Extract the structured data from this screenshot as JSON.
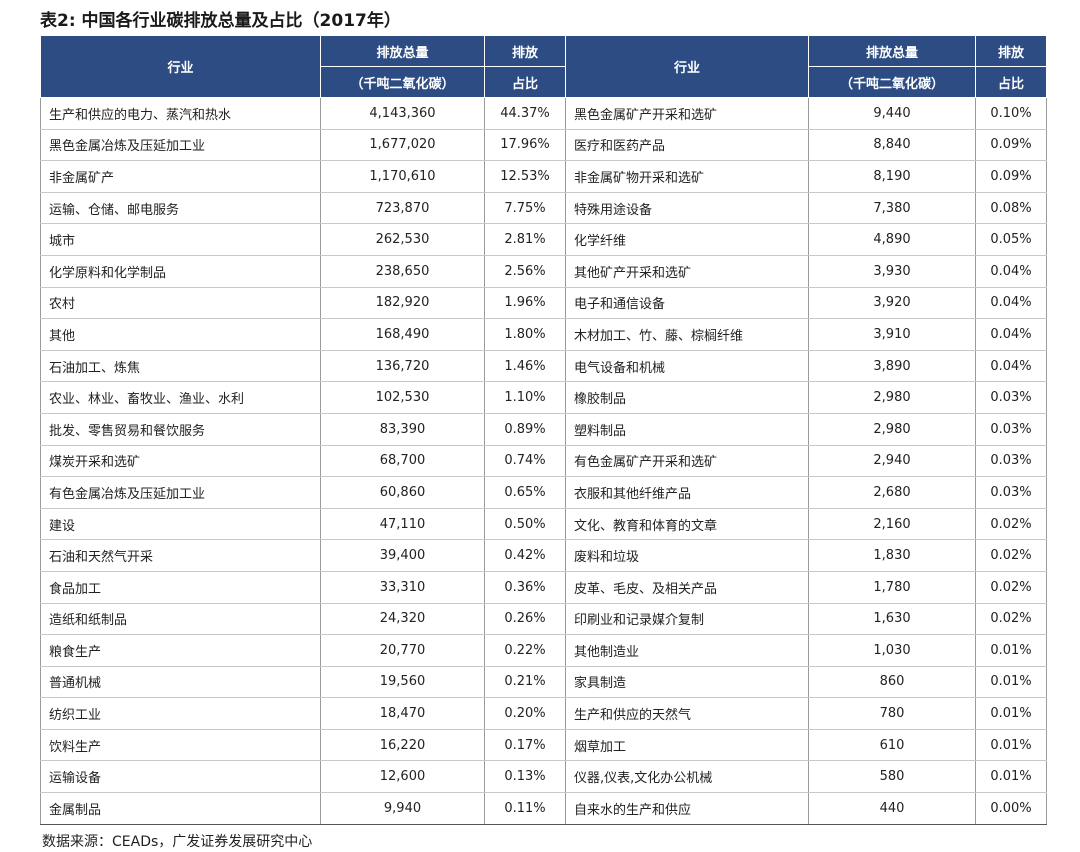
{
  "title": "表2:  中国各行业碳排放总量及占比（2017年）",
  "header": {
    "industry": "行业",
    "total": [
      "排放总量",
      "（千吨二氧化碳）"
    ],
    "share": [
      "排放",
      "占比"
    ]
  },
  "rows": [
    {
      "left": [
        "生产和供应的电力、蒸汽和热水",
        "4,143,360",
        "44.37%"
      ],
      "right": [
        "黑色金属矿产开采和选矿",
        "9,440",
        "0.10%"
      ]
    },
    {
      "left": [
        "黑色金属冶炼及压延加工业",
        "1,677,020",
        "17.96%"
      ],
      "right": [
        "医疗和医药产品",
        "8,840",
        "0.09%"
      ]
    },
    {
      "left": [
        "非金属矿产",
        "1,170,610",
        "12.53%"
      ],
      "right": [
        "非金属矿物开采和选矿",
        "8,190",
        "0.09%"
      ]
    },
    {
      "left": [
        "运输、仓储、邮电服务",
        "723,870",
        "7.75%"
      ],
      "right": [
        "特殊用途设备",
        "7,380",
        "0.08%"
      ]
    },
    {
      "left": [
        "城市",
        "262,530",
        "2.81%"
      ],
      "right": [
        "化学纤维",
        "4,890",
        "0.05%"
      ]
    },
    {
      "left": [
        "化学原料和化学制品",
        "238,650",
        "2.56%"
      ],
      "right": [
        "其他矿产开采和选矿",
        "3,930",
        "0.04%"
      ]
    },
    {
      "left": [
        "农村",
        "182,920",
        "1.96%"
      ],
      "right": [
        "电子和通信设备",
        "3,920",
        "0.04%"
      ]
    },
    {
      "left": [
        "其他",
        "168,490",
        "1.80%"
      ],
      "right": [
        "木材加工、竹、藤、棕榈纤维",
        "3,910",
        "0.04%"
      ]
    },
    {
      "left": [
        "石油加工、炼焦",
        "136,720",
        "1.46%"
      ],
      "right": [
        "电气设备和机械",
        "3,890",
        "0.04%"
      ]
    },
    {
      "left": [
        "农业、林业、畜牧业、渔业、水利",
        "102,530",
        "1.10%"
      ],
      "right": [
        "橡胶制品",
        "2,980",
        "0.03%"
      ]
    },
    {
      "left": [
        "批发、零售贸易和餐饮服务",
        "83,390",
        "0.89%"
      ],
      "right": [
        "塑料制品",
        "2,980",
        "0.03%"
      ]
    },
    {
      "left": [
        "煤炭开采和选矿",
        "68,700",
        "0.74%"
      ],
      "right": [
        "有色金属矿产开采和选矿",
        "2,940",
        "0.03%"
      ]
    },
    {
      "left": [
        "有色金属冶炼及压延加工业",
        "60,860",
        "0.65%"
      ],
      "right": [
        "衣服和其他纤维产品",
        "2,680",
        "0.03%"
      ]
    },
    {
      "left": [
        "建设",
        "47,110",
        "0.50%"
      ],
      "right": [
        "文化、教育和体育的文章",
        "2,160",
        "0.02%"
      ]
    },
    {
      "left": [
        "石油和天然气开采",
        "39,400",
        "0.42%"
      ],
      "right": [
        "废料和垃圾",
        "1,830",
        "0.02%"
      ]
    },
    {
      "left": [
        "食品加工",
        "33,310",
        "0.36%"
      ],
      "right": [
        "皮革、毛皮、及相关产品",
        "1,780",
        "0.02%"
      ]
    },
    {
      "left": [
        "造纸和纸制品",
        "24,320",
        "0.26%"
      ],
      "right": [
        "印刷业和记录媒介复制",
        "1,630",
        "0.02%"
      ]
    },
    {
      "left": [
        "粮食生产",
        "20,770",
        "0.22%"
      ],
      "right": [
        "其他制造业",
        "1,030",
        "0.01%"
      ]
    },
    {
      "left": [
        "普通机械",
        "19,560",
        "0.21%"
      ],
      "right": [
        "家具制造",
        "860",
        "0.01%"
      ]
    },
    {
      "left": [
        "纺织工业",
        "18,470",
        "0.20%"
      ],
      "right": [
        "生产和供应的天然气",
        "780",
        "0.01%"
      ]
    },
    {
      "left": [
        "饮料生产",
        "16,220",
        "0.17%"
      ],
      "right": [
        "烟草加工",
        "610",
        "0.01%"
      ]
    },
    {
      "left": [
        "运输设备",
        "12,600",
        "0.13%"
      ],
      "right": [
        "仪器,仪表,文化办公机械",
        "580",
        "0.01%"
      ]
    },
    {
      "left": [
        "金属制品",
        "9,940",
        "0.11%"
      ],
      "right": [
        "自来水的生产和供应",
        "440",
        "0.00%"
      ]
    }
  ],
  "source": "数据来源：CEADs，广发证券发展研究中心"
}
